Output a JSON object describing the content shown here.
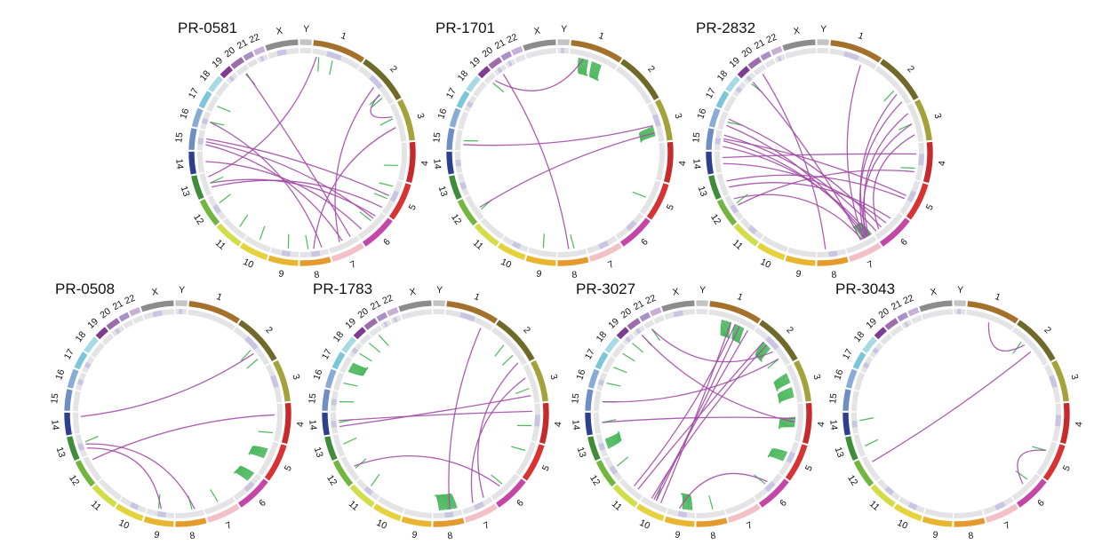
{
  "figure": {
    "chromosomes": [
      "1",
      "2",
      "3",
      "4",
      "5",
      "6",
      "7",
      "8",
      "9",
      "10",
      "11",
      "12",
      "13",
      "14",
      "15",
      "16",
      "17",
      "18",
      "19",
      "20",
      "21",
      "22",
      "X",
      "Y"
    ],
    "chromosome_colors": [
      "#a3712b",
      "#6f6a2a",
      "#a4a23a",
      "#c62a2a",
      "#d93232",
      "#c447a8",
      "#f2c0c6",
      "#e59a2e",
      "#e7b52f",
      "#e6d23c",
      "#d3dd4a",
      "#73b63f",
      "#3f8c3a",
      "#2e3f91",
      "#6f8fc4",
      "#89acd6",
      "#7bc6d8",
      "#a6dbe6",
      "#7e3c92",
      "#9d6cad",
      "#a891c4",
      "#c6b0d6",
      "#8c8c8c",
      "#c4c4c4"
    ],
    "intra_color": "#4cb85e",
    "inter_color": "#a34ca7",
    "samples": [
      {
        "name": "PR-0581",
        "intra": [
          {
            "chrom": "1",
            "pos": 0.15
          },
          {
            "chrom": "1",
            "pos": 0.45
          },
          {
            "chrom": "2",
            "pos": 0.72
          },
          {
            "chrom": "2",
            "pos": 0.8
          },
          {
            "chrom": "3",
            "pos": 0.35
          },
          {
            "chrom": "4",
            "pos": 0.62
          },
          {
            "chrom": "5",
            "pos": 0.2
          },
          {
            "chrom": "5",
            "pos": 0.6
          },
          {
            "chrom": "6",
            "pos": 0.4
          },
          {
            "chrom": "8",
            "pos": 0.7
          },
          {
            "chrom": "9",
            "pos": 0.4
          },
          {
            "chrom": "10",
            "pos": 0.5
          },
          {
            "chrom": "11",
            "pos": 0.4
          },
          {
            "chrom": "12",
            "pos": 0.6
          },
          {
            "chrom": "13",
            "pos": 0.5
          },
          {
            "chrom": "16",
            "pos": 0.5
          },
          {
            "chrom": "17",
            "pos": 0.5
          },
          {
            "chrom": "20",
            "pos": 0.5
          }
        ],
        "inter": [
          {
            "a": "15",
            "pa": 0.45,
            "b": "6",
            "pb": 0.3
          },
          {
            "a": "15",
            "pa": 0.6,
            "b": "5",
            "pb": 0.5
          },
          {
            "a": "15",
            "pa": 0.3,
            "b": "7",
            "pb": 0.5
          },
          {
            "a": "14",
            "pa": 0.5,
            "b": "6",
            "pb": 0.8
          },
          {
            "a": "13",
            "pa": 0.5,
            "b": "6",
            "pb": 0.2
          },
          {
            "a": "13",
            "pa": 0.3,
            "b": "5",
            "pb": 0.9
          },
          {
            "a": "1",
            "pa": 0.1,
            "b": "13",
            "pb": 0.8
          },
          {
            "a": "2",
            "pa": 0.5,
            "b": "7",
            "pb": 0.6
          },
          {
            "a": "2",
            "pa": 0.7,
            "b": "3",
            "pb": 0.3
          },
          {
            "a": "3",
            "pa": 0.6,
            "b": "8",
            "pb": 0.5
          },
          {
            "a": "16",
            "pa": 0.5,
            "b": "8",
            "pb": 0.2
          },
          {
            "a": "20",
            "pa": 0.6,
            "b": "7",
            "pb": 0.2
          }
        ]
      },
      {
        "name": "PR-1701",
        "intra": [
          {
            "chrom": "1",
            "pos": 0.3,
            "dense": true
          },
          {
            "chrom": "1",
            "pos": 0.6,
            "dense": true
          },
          {
            "chrom": "3",
            "pos": 0.7,
            "dense": true
          },
          {
            "chrom": "5",
            "pos": 0.55
          },
          {
            "chrom": "8",
            "pos": 0.4
          },
          {
            "chrom": "9",
            "pos": 0.5
          },
          {
            "chrom": "12",
            "pos": 0.3
          },
          {
            "chrom": "15",
            "pos": 0.5
          },
          {
            "chrom": "19",
            "pos": 0.4
          }
        ],
        "inter": [
          {
            "a": "15",
            "pa": 0.3,
            "b": "3",
            "pb": 0.55
          },
          {
            "a": "12",
            "pa": 0.4,
            "b": "3",
            "pb": 0.75
          },
          {
            "a": "20",
            "pa": 0.5,
            "b": "8",
            "pb": 0.6
          },
          {
            "a": "19",
            "pa": 0.7,
            "b": "1",
            "pb": 0.3
          }
        ]
      },
      {
        "name": "PR-2832",
        "intra": [
          {
            "chrom": "2",
            "pos": 0.6
          },
          {
            "chrom": "3",
            "pos": 0.5
          },
          {
            "chrom": "4",
            "pos": 0.7
          },
          {
            "chrom": "7",
            "pos": 0.2,
            "dense": true
          },
          {
            "chrom": "12",
            "pos": 0.6
          },
          {
            "chrom": "16",
            "pos": 0.5
          },
          {
            "chrom": "19",
            "pos": 0.3
          }
        ],
        "inter": [
          {
            "a": "15",
            "pa": 0.2,
            "b": "7",
            "pb": 0.1
          },
          {
            "a": "15",
            "pa": 0.5,
            "b": "7",
            "pb": 0.2
          },
          {
            "a": "15",
            "pa": 0.8,
            "b": "6",
            "pb": 0.9
          },
          {
            "a": "16",
            "pa": 0.3,
            "b": "7",
            "pb": 0.3
          },
          {
            "a": "16",
            "pa": 0.7,
            "b": "6",
            "pb": 0.7
          },
          {
            "a": "14",
            "pa": 0.4,
            "b": "6",
            "pb": 0.5
          },
          {
            "a": "13",
            "pa": 0.6,
            "b": "5",
            "pb": 0.6
          },
          {
            "a": "13",
            "pa": 0.3,
            "b": "6",
            "pb": 0.3
          },
          {
            "a": "12",
            "pa": 0.8,
            "b": "7",
            "pb": 0.4
          },
          {
            "a": "2",
            "pa": 0.7,
            "b": "7",
            "pb": 0.2
          },
          {
            "a": "2",
            "pa": 0.9,
            "b": "7",
            "pb": 0.3
          },
          {
            "a": "3",
            "pa": 0.2,
            "b": "7",
            "pb": 0.15
          },
          {
            "a": "3",
            "pa": 0.5,
            "b": "7",
            "pb": 0.25
          },
          {
            "a": "3",
            "pa": 0.8,
            "b": "6",
            "pb": 0.8
          },
          {
            "a": "1",
            "pa": 0.7,
            "b": "7",
            "pb": 0.35
          },
          {
            "a": "19",
            "pa": 0.5,
            "b": "7",
            "pb": 0.45
          },
          {
            "a": "20",
            "pa": 0.5,
            "b": "8",
            "pb": 0.7
          },
          {
            "a": "4",
            "pa": 0.3,
            "b": "14",
            "pb": 0.7
          },
          {
            "a": "4",
            "pa": 0.8,
            "b": "12",
            "pb": 0.5
          },
          {
            "a": "5",
            "pa": 0.5,
            "b": "15",
            "pb": 0.6
          }
        ]
      },
      {
        "name": "PR-0508",
        "intra": [
          {
            "chrom": "2",
            "pos": 0.55
          },
          {
            "chrom": "2",
            "pos": 0.8
          },
          {
            "chrom": "4",
            "pos": 0.8
          },
          {
            "chrom": "5",
            "pos": 0.4,
            "dense": true
          },
          {
            "chrom": "6",
            "pos": 0.2,
            "dense": true
          },
          {
            "chrom": "7",
            "pos": 0.5
          },
          {
            "chrom": "8",
            "pos": 0.4
          },
          {
            "chrom": "9",
            "pos": 0.6
          },
          {
            "chrom": "13",
            "pos": 0.6
          }
        ],
        "inter": [
          {
            "a": "14",
            "pa": 0.8,
            "b": "2",
            "pb": 0.65
          },
          {
            "a": "13",
            "pa": 0.5,
            "b": "8",
            "pb": 0.3
          },
          {
            "a": "12",
            "pa": 0.8,
            "b": "4",
            "pb": 0.3
          },
          {
            "a": "13",
            "pa": 0.3,
            "b": "9",
            "pb": 0.5
          }
        ]
      },
      {
        "name": "PR-1783",
        "intra": [
          {
            "chrom": "2",
            "pos": 0.4
          },
          {
            "chrom": "2",
            "pos": 0.7
          },
          {
            "chrom": "3",
            "pos": 0.6
          },
          {
            "chrom": "4",
            "pos": 0.6
          },
          {
            "chrom": "5",
            "pos": 0.3
          },
          {
            "chrom": "6",
            "pos": 0.5
          },
          {
            "chrom": "8",
            "pos": 0.6,
            "dense": true
          },
          {
            "chrom": "8",
            "pos": 0.3,
            "dense": true
          },
          {
            "chrom": "11",
            "pos": 0.5
          },
          {
            "chrom": "12",
            "pos": 0.4
          },
          {
            "chrom": "13",
            "pos": 0.5
          },
          {
            "chrom": "14",
            "pos": 0.5
          },
          {
            "chrom": "15",
            "pos": 0.5
          },
          {
            "chrom": "16",
            "pos": 0.5
          },
          {
            "chrom": "17",
            "pos": 0.5,
            "dense": true
          },
          {
            "chrom": "18",
            "pos": 0.5
          },
          {
            "chrom": "19",
            "pos": 0.5
          },
          {
            "chrom": "20",
            "pos": 0.5
          }
        ],
        "inter": [
          {
            "a": "14",
            "pa": 0.3,
            "b": "3",
            "pb": 0.8
          },
          {
            "a": "14",
            "pa": 0.6,
            "b": "4",
            "pb": 0.2
          },
          {
            "a": "12",
            "pa": 0.5,
            "b": "6",
            "pb": 0.6
          },
          {
            "a": "2",
            "pa": 0.9,
            "b": "7",
            "pb": 0.2
          },
          {
            "a": "1",
            "pa": 0.8,
            "b": "8",
            "pb": 0.4
          },
          {
            "a": "3",
            "pa": 0.3,
            "b": "7",
            "pb": 0.6
          }
        ]
      },
      {
        "name": "PR-3027",
        "intra": [
          {
            "chrom": "1",
            "pos": 0.4,
            "dense": true
          },
          {
            "chrom": "1",
            "pos": 0.7,
            "dense": true
          },
          {
            "chrom": "2",
            "pos": 0.4,
            "dense": true
          },
          {
            "chrom": "2",
            "pos": 0.8
          },
          {
            "chrom": "3",
            "pos": 0.3,
            "dense": true
          },
          {
            "chrom": "3",
            "pos": 0.7,
            "dense": true
          },
          {
            "chrom": "4",
            "pos": 0.5,
            "dense": true
          },
          {
            "chrom": "5",
            "pos": 0.5,
            "dense": true
          },
          {
            "chrom": "6",
            "pos": 0.5
          },
          {
            "chrom": "8",
            "pos": 0.4
          },
          {
            "chrom": "9",
            "pos": 0.3,
            "dense": true
          },
          {
            "chrom": "10",
            "pos": 0.5
          },
          {
            "chrom": "12",
            "pos": 0.5
          },
          {
            "chrom": "13",
            "pos": 0.5,
            "dense": true
          },
          {
            "chrom": "14",
            "pos": 0.5
          },
          {
            "chrom": "15",
            "pos": 0.5
          },
          {
            "chrom": "16",
            "pos": 0.5
          },
          {
            "chrom": "17",
            "pos": 0.5
          },
          {
            "chrom": "18",
            "pos": 0.5
          },
          {
            "chrom": "19",
            "pos": 0.5
          },
          {
            "chrom": "20",
            "pos": 0.5
          },
          {
            "chrom": "21",
            "pos": 0.5
          }
        ],
        "inter": [
          {
            "a": "10",
            "pa": 0.3,
            "b": "1",
            "pb": 0.5
          },
          {
            "a": "10",
            "pa": 0.5,
            "b": "1",
            "pb": 0.7
          },
          {
            "a": "10",
            "pa": 0.7,
            "b": "2",
            "pb": 0.4
          },
          {
            "a": "10",
            "pa": 0.6,
            "b": "1",
            "pb": 0.9
          },
          {
            "a": "11",
            "pa": 0.3,
            "b": "2",
            "pb": 0.3
          },
          {
            "a": "11",
            "pa": 0.5,
            "b": "1",
            "pb": 0.6
          },
          {
            "a": "20",
            "pa": 0.5,
            "b": "4",
            "pb": 0.5
          },
          {
            "a": "21",
            "pa": 0.5,
            "b": "2",
            "pb": 0.6
          },
          {
            "a": "14",
            "pa": 0.5,
            "b": "4",
            "pb": 0.4
          },
          {
            "a": "15",
            "pa": 0.5,
            "b": "2",
            "pb": 0.8
          },
          {
            "a": "9",
            "pa": 0.6,
            "b": "6",
            "pb": 0.4
          }
        ]
      },
      {
        "name": "PR-3043",
        "intra": [
          {
            "chrom": "2",
            "pos": 0.3
          },
          {
            "chrom": "5",
            "pos": 0.3
          },
          {
            "chrom": "6",
            "pos": 0.3
          },
          {
            "chrom": "13",
            "pos": 0.4
          },
          {
            "chrom": "14",
            "pos": 0.6
          }
        ],
        "inter": [
          {
            "a": "1",
            "pa": 0.5,
            "b": "2",
            "pb": 0.4
          },
          {
            "a": "12",
            "pa": 0.7,
            "b": "2",
            "pb": 0.6
          },
          {
            "a": "5",
            "pa": 0.3,
            "b": "6",
            "pb": 0.5
          }
        ]
      }
    ]
  }
}
